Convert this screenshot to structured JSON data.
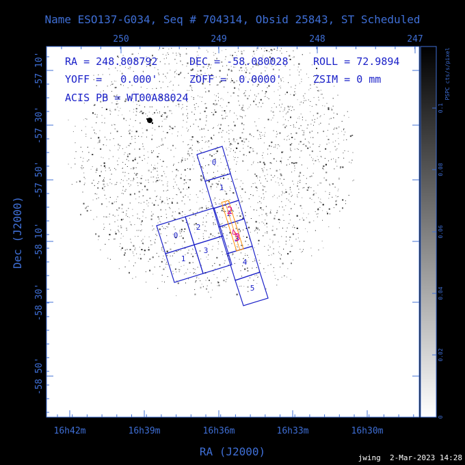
{
  "chart_data": {
    "type": "scatter",
    "title": "Name ESO137-G034, Seq # 704314, Obsid 25843, ST Scheduled",
    "xlabel": "RA (J2000)",
    "ylabel": "Dec (J2000)",
    "top_axis_ticks": [
      "250",
      "249",
      "248",
      "247"
    ],
    "bottom_axis_ticks": [
      "16h42m",
      "16h39m",
      "16h36m",
      "16h33m",
      "16h30m"
    ],
    "left_axis_ticks": [
      "-57 10'",
      "-57 30'",
      "-57 50'",
      "-58 10'",
      "-58 30'",
      "-58 50'"
    ],
    "info_lines": [
      [
        "RA = 248.808792",
        "DEC = -58.080028",
        "ROLL = 72.9894"
      ],
      [
        "YOFF =   0.000'",
        "ZOFF =  0.0000'",
        "ZSIM = 0 mm"
      ],
      [
        "ACIS PB = WT00A88024"
      ]
    ],
    "colorbar": {
      "label": "PSPC cts/s/pixel",
      "ticks": [
        "0",
        "0.02",
        "0.04",
        "0.06",
        "0.08",
        "0.1"
      ],
      "range": [
        0,
        0.12
      ]
    },
    "acis_i_chips": [
      "0",
      "1",
      "2",
      "3"
    ],
    "acis_s_chips": [
      "0",
      "1",
      "2",
      "3",
      "4",
      "5"
    ],
    "hrc_chips": [
      "2",
      "3"
    ],
    "colors": {
      "axes": "#3f6fd6",
      "chips": "#1a20c8",
      "hrc": "#e0148c",
      "slit": "#ff8c00",
      "background": "#000000",
      "plot_area": "#ffffff"
    }
  },
  "footer": "jwing  2-Mar-2023 14:28"
}
